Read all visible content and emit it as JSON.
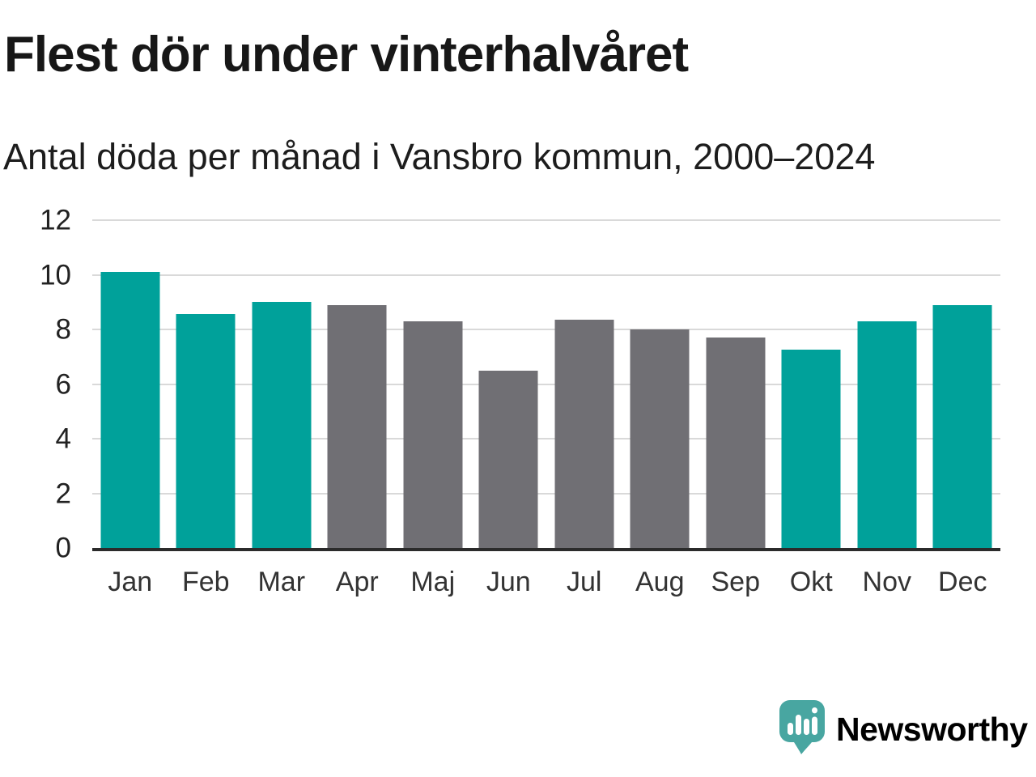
{
  "header": {
    "title": "Flest dör under vinterhalvåret",
    "subtitle": "Antal döda per månad i Vansbro kommun, 2000–2024"
  },
  "chart_data": {
    "type": "bar",
    "title": "Flest dör under vinterhalvåret",
    "subtitle": "Antal döda per månad i Vansbro kommun, 2000–2024",
    "categories": [
      "Jan",
      "Feb",
      "Mar",
      "Apr",
      "Maj",
      "Jun",
      "Jul",
      "Aug",
      "Sep",
      "Okt",
      "Nov",
      "Dec"
    ],
    "values": [
      10.1,
      8.55,
      9.0,
      8.9,
      8.3,
      6.5,
      8.35,
      8.0,
      7.7,
      7.25,
      8.3,
      8.9
    ],
    "bar_groups": [
      "winter",
      "winter",
      "winter",
      "summer",
      "summer",
      "summer",
      "summer",
      "summer",
      "summer",
      "winter",
      "winter",
      "winter"
    ],
    "bar_palette": {
      "winter": "#00a19a",
      "summer": "#706f74"
    },
    "xlabel": "",
    "ylabel": "",
    "ylim": [
      0,
      12
    ],
    "yticks": [
      0,
      2,
      4,
      6,
      8,
      10,
      12
    ],
    "grid": "horizontal",
    "legend": "none"
  },
  "branding": {
    "name": "Newsworthy",
    "logo_color": "#48a6a1",
    "logo_icon": "bar-chart-speech-bubble-icon"
  }
}
